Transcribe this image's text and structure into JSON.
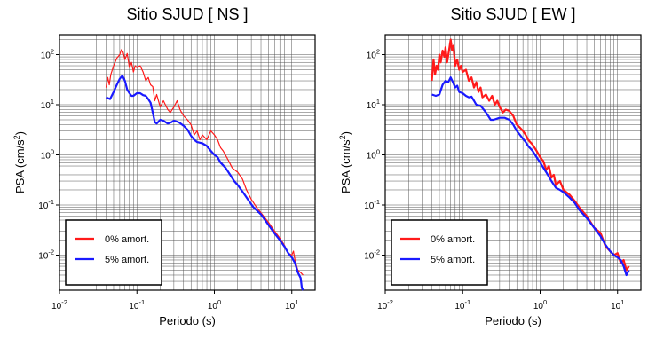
{
  "colors": {
    "undamped": "#ff1a1a",
    "damped": "#1a1aff",
    "grid": "#555555",
    "axis": "#000000"
  },
  "chart_data": [
    {
      "type": "line",
      "title": "Sitio SJUD [ NS ]",
      "xlabel": "Periodo (s)",
      "ylabel_main": "PSA (cm/s",
      "ylabel_sup": "2",
      "ylabel_tail": ")",
      "xscale": "log",
      "yscale": "log",
      "xlim": [
        0.01,
        20
      ],
      "ylim": [
        0.002,
        250
      ],
      "grid": true,
      "legend_position": "bottom-left",
      "x_ticks": [
        {
          "base": "10",
          "exp": "-2",
          "value": 0.01
        },
        {
          "base": "10",
          "exp": "-1",
          "value": 0.1
        },
        {
          "base": "10",
          "exp": "0",
          "value": 1
        },
        {
          "base": "10",
          "exp": "1",
          "value": 10
        }
      ],
      "y_ticks": [
        {
          "base": "10",
          "exp": "2",
          "value": 100
        },
        {
          "base": "10",
          "exp": "1",
          "value": 10
        },
        {
          "base": "10",
          "exp": "0",
          "value": 1
        },
        {
          "base": "10",
          "exp": "-1",
          "value": 0.1
        },
        {
          "base": "10",
          "exp": "-2",
          "value": 0.01
        }
      ],
      "series": [
        {
          "name": "0% amort.",
          "color": "#ff1a1a",
          "points": [
            [
              0.04,
              22
            ],
            [
              0.042,
              35
            ],
            [
              0.044,
              25
            ],
            [
              0.046,
              40
            ],
            [
              0.05,
              60
            ],
            [
              0.055,
              85
            ],
            [
              0.06,
              100
            ],
            [
              0.063,
              125
            ],
            [
              0.066,
              115
            ],
            [
              0.07,
              80
            ],
            [
              0.075,
              105
            ],
            [
              0.08,
              55
            ],
            [
              0.085,
              70
            ],
            [
              0.09,
              45
            ],
            [
              0.095,
              60
            ],
            [
              0.1,
              55
            ],
            [
              0.11,
              60
            ],
            [
              0.12,
              45
            ],
            [
              0.13,
              30
            ],
            [
              0.14,
              35
            ],
            [
              0.15,
              25
            ],
            [
              0.16,
              23
            ],
            [
              0.17,
              12
            ],
            [
              0.18,
              16
            ],
            [
              0.2,
              9
            ],
            [
              0.22,
              12
            ],
            [
              0.25,
              8
            ],
            [
              0.27,
              7
            ],
            [
              0.3,
              9
            ],
            [
              0.33,
              12
            ],
            [
              0.36,
              8
            ],
            [
              0.4,
              6
            ],
            [
              0.45,
              5
            ],
            [
              0.5,
              4
            ],
            [
              0.55,
              2.5
            ],
            [
              0.6,
              3
            ],
            [
              0.65,
              2
            ],
            [
              0.7,
              2.5
            ],
            [
              0.8,
              2
            ],
            [
              0.9,
              3
            ],
            [
              1.0,
              2.5
            ],
            [
              1.1,
              2
            ],
            [
              1.2,
              1.4
            ],
            [
              1.3,
              1.2
            ],
            [
              1.5,
              0.8
            ],
            [
              1.7,
              0.55
            ],
            [
              2.0,
              0.45
            ],
            [
              2.3,
              0.33
            ],
            [
              2.6,
              0.2
            ],
            [
              3.0,
              0.13
            ],
            [
              3.5,
              0.09
            ],
            [
              4.0,
              0.07
            ],
            [
              5.0,
              0.045
            ],
            [
              6.0,
              0.03
            ],
            [
              7.0,
              0.022
            ],
            [
              8.0,
              0.016
            ],
            [
              9.0,
              0.011
            ],
            [
              10.0,
              0.01
            ],
            [
              10.5,
              0.012
            ],
            [
              11.0,
              0.008
            ],
            [
              12.0,
              0.005
            ],
            [
              13.0,
              0.0045
            ],
            [
              14.0,
              0.004
            ]
          ]
        },
        {
          "name": "5% amort.",
          "color": "#1a1aff",
          "points": [
            [
              0.04,
              14
            ],
            [
              0.045,
              13
            ],
            [
              0.05,
              18
            ],
            [
              0.055,
              25
            ],
            [
              0.06,
              33
            ],
            [
              0.065,
              38
            ],
            [
              0.07,
              30
            ],
            [
              0.075,
              20
            ],
            [
              0.08,
              17
            ],
            [
              0.085,
              15
            ],
            [
              0.09,
              15
            ],
            [
              0.1,
              17
            ],
            [
              0.11,
              17
            ],
            [
              0.12,
              15.5
            ],
            [
              0.13,
              15
            ],
            [
              0.14,
              13
            ],
            [
              0.15,
              11
            ],
            [
              0.16,
              7
            ],
            [
              0.17,
              4.5
            ],
            [
              0.18,
              4.2
            ],
            [
              0.2,
              5
            ],
            [
              0.22,
              4.8
            ],
            [
              0.25,
              4.2
            ],
            [
              0.28,
              4.5
            ],
            [
              0.3,
              4.8
            ],
            [
              0.33,
              4.6
            ],
            [
              0.36,
              4.3
            ],
            [
              0.4,
              3.8
            ],
            [
              0.45,
              3.2
            ],
            [
              0.5,
              2.4
            ],
            [
              0.55,
              2.0
            ],
            [
              0.6,
              1.8
            ],
            [
              0.65,
              1.75
            ],
            [
              0.7,
              1.7
            ],
            [
              0.8,
              1.5
            ],
            [
              0.9,
              1.2
            ],
            [
              1.0,
              1.0
            ],
            [
              1.1,
              0.9
            ],
            [
              1.2,
              0.7
            ],
            [
              1.4,
              0.55
            ],
            [
              1.6,
              0.4
            ],
            [
              1.8,
              0.3
            ],
            [
              2.0,
              0.25
            ],
            [
              2.4,
              0.17
            ],
            [
              2.8,
              0.12
            ],
            [
              3.2,
              0.09
            ],
            [
              4.0,
              0.065
            ],
            [
              5.0,
              0.04
            ],
            [
              6.0,
              0.027
            ],
            [
              7.0,
              0.02
            ],
            [
              8.0,
              0.015
            ],
            [
              9.0,
              0.011
            ],
            [
              10.0,
              0.009
            ],
            [
              11.0,
              0.007
            ],
            [
              12.0,
              0.0045
            ],
            [
              13.0,
              0.0035
            ],
            [
              13.5,
              0.0022
            ],
            [
              14.0,
              0.002
            ]
          ]
        }
      ]
    },
    {
      "type": "line",
      "title": "Sitio SJUD [ EW ]",
      "xlabel": "Periodo (s)",
      "ylabel_main": "PSA (cm/s",
      "ylabel_sup": "2",
      "ylabel_tail": ")",
      "xscale": "log",
      "yscale": "log",
      "xlim": [
        0.01,
        20
      ],
      "ylim": [
        0.002,
        250
      ],
      "grid": true,
      "legend_position": "bottom-left",
      "x_ticks": [
        {
          "base": "10",
          "exp": "-2",
          "value": 0.01
        },
        {
          "base": "10",
          "exp": "-1",
          "value": 0.1
        },
        {
          "base": "10",
          "exp": "0",
          "value": 1
        },
        {
          "base": "10",
          "exp": "1",
          "value": 10
        }
      ],
      "y_ticks": [
        {
          "base": "10",
          "exp": "2",
          "value": 100
        },
        {
          "base": "10",
          "exp": "1",
          "value": 10
        },
        {
          "base": "10",
          "exp": "0",
          "value": 1
        },
        {
          "base": "10",
          "exp": "-1",
          "value": 0.1
        },
        {
          "base": "10",
          "exp": "-2",
          "value": 0.01
        }
      ],
      "series": [
        {
          "name": "0% amort.",
          "color": "#ff1a1a",
          "points": [
            [
              0.04,
              30
            ],
            [
              0.042,
              80
            ],
            [
              0.044,
              40
            ],
            [
              0.046,
              60
            ],
            [
              0.048,
              50
            ],
            [
              0.05,
              100
            ],
            [
              0.052,
              70
            ],
            [
              0.055,
              120
            ],
            [
              0.058,
              90
            ],
            [
              0.06,
              140
            ],
            [
              0.063,
              70
            ],
            [
              0.066,
              110
            ],
            [
              0.07,
              200
            ],
            [
              0.073,
              120
            ],
            [
              0.076,
              150
            ],
            [
              0.08,
              60
            ],
            [
              0.085,
              80
            ],
            [
              0.09,
              50
            ],
            [
              0.095,
              60
            ],
            [
              0.1,
              45
            ],
            [
              0.11,
              50
            ],
            [
              0.12,
              30
            ],
            [
              0.13,
              35
            ],
            [
              0.14,
              22
            ],
            [
              0.15,
              28
            ],
            [
              0.16,
              18
            ],
            [
              0.17,
              22
            ],
            [
              0.18,
              14
            ],
            [
              0.2,
              16
            ],
            [
              0.22,
              12
            ],
            [
              0.24,
              15
            ],
            [
              0.26,
              10
            ],
            [
              0.28,
              12
            ],
            [
              0.3,
              9
            ],
            [
              0.33,
              7
            ],
            [
              0.36,
              8
            ],
            [
              0.4,
              7.5
            ],
            [
              0.45,
              6
            ],
            [
              0.5,
              4
            ],
            [
              0.55,
              3.5
            ],
            [
              0.6,
              3
            ],
            [
              0.65,
              2.5
            ],
            [
              0.7,
              2
            ],
            [
              0.8,
              1.6
            ],
            [
              0.9,
              1.2
            ],
            [
              1.0,
              0.9
            ],
            [
              1.1,
              0.75
            ],
            [
              1.2,
              0.5
            ],
            [
              1.3,
              0.6
            ],
            [
              1.4,
              0.35
            ],
            [
              1.5,
              0.4
            ],
            [
              1.6,
              0.25
            ],
            [
              1.8,
              0.3
            ],
            [
              2.0,
              0.2
            ],
            [
              2.4,
              0.16
            ],
            [
              2.8,
              0.12
            ],
            [
              3.2,
              0.09
            ],
            [
              4.0,
              0.06
            ],
            [
              5.0,
              0.035
            ],
            [
              6.0,
              0.028
            ],
            [
              7.0,
              0.015
            ],
            [
              8.0,
              0.012
            ],
            [
              9.0,
              0.01
            ],
            [
              10.0,
              0.011
            ],
            [
              11.0,
              0.007
            ],
            [
              12.0,
              0.008
            ],
            [
              13.0,
              0.005
            ],
            [
              14.0,
              0.006
            ]
          ]
        },
        {
          "name": "5% amort.",
          "color": "#1a1aff",
          "points": [
            [
              0.04,
              16
            ],
            [
              0.045,
              15
            ],
            [
              0.05,
              16
            ],
            [
              0.055,
              25
            ],
            [
              0.06,
              30
            ],
            [
              0.065,
              28
            ],
            [
              0.07,
              35
            ],
            [
              0.075,
              28
            ],
            [
              0.08,
              22
            ],
            [
              0.085,
              24
            ],
            [
              0.09,
              18
            ],
            [
              0.1,
              17
            ],
            [
              0.11,
              15
            ],
            [
              0.12,
              14
            ],
            [
              0.13,
              14.5
            ],
            [
              0.14,
              12
            ],
            [
              0.15,
              10
            ],
            [
              0.17,
              9.5
            ],
            [
              0.2,
              7
            ],
            [
              0.23,
              5
            ],
            [
              0.25,
              5
            ],
            [
              0.28,
              5.3
            ],
            [
              0.3,
              5.5
            ],
            [
              0.35,
              5.5
            ],
            [
              0.4,
              5
            ],
            [
              0.45,
              4
            ],
            [
              0.5,
              3
            ],
            [
              0.55,
              2.5
            ],
            [
              0.6,
              2.1
            ],
            [
              0.65,
              1.8
            ],
            [
              0.7,
              1.5
            ],
            [
              0.8,
              1.2
            ],
            [
              0.9,
              0.9
            ],
            [
              1.0,
              0.7
            ],
            [
              1.2,
              0.45
            ],
            [
              1.4,
              0.3
            ],
            [
              1.6,
              0.22
            ],
            [
              1.8,
              0.2
            ],
            [
              2.0,
              0.18
            ],
            [
              2.4,
              0.14
            ],
            [
              2.8,
              0.11
            ],
            [
              3.2,
              0.08
            ],
            [
              4.0,
              0.055
            ],
            [
              5.0,
              0.035
            ],
            [
              6.0,
              0.024
            ],
            [
              7.0,
              0.016
            ],
            [
              8.0,
              0.012
            ],
            [
              9.0,
              0.01
            ],
            [
              10.0,
              0.009
            ],
            [
              11.0,
              0.008
            ],
            [
              12.0,
              0.006
            ],
            [
              13.0,
              0.004
            ],
            [
              14.0,
              0.005
            ]
          ]
        }
      ]
    }
  ]
}
